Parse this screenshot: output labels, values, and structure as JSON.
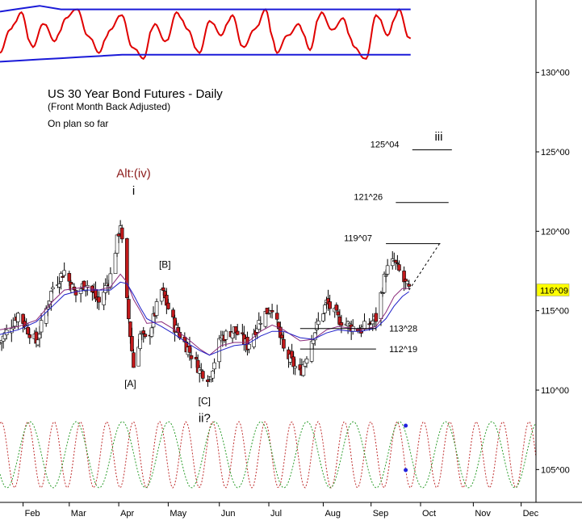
{
  "chart_data": {
    "type": "candlestick",
    "title": "US 30 Year Bond Futures - Daily",
    "subtitle": "(Front Month Back Adjusted)",
    "note": "On plan so far",
    "y_axis": {
      "scale": "linear",
      "range": [
        103,
        136
      ],
      "tick_labels": [
        "105^00",
        "110^00",
        "115^00",
        "120^00",
        "125^00",
        "130^00"
      ],
      "tick_values": [
        105,
        110,
        115,
        120,
        125,
        130
      ],
      "current_price_label": "116^09",
      "current_price": 116.28
    },
    "x_axis": {
      "type": "date",
      "range": [
        "2015-01-19",
        "2015-12-10"
      ],
      "tick_labels": [
        "Feb",
        "Mar",
        "Apr",
        "May",
        "Jun",
        "Jul",
        "Aug",
        "Sep",
        "Oct",
        "Nov",
        "Dec"
      ],
      "tick_dates": [
        "2015-02-02",
        "2015-03-02",
        "2015-04-01",
        "2015-05-01",
        "2015-06-01",
        "2015-07-01",
        "2015-08-03",
        "2015-09-01",
        "2015-10-01",
        "2015-11-02",
        "2015-12-01"
      ]
    },
    "price_path": {
      "dates": [
        "2015-01-19",
        "2015-01-30",
        "2015-02-10",
        "2015-02-20",
        "2015-02-27",
        "2015-03-06",
        "2015-03-12",
        "2015-03-20",
        "2015-03-27",
        "2015-04-02",
        "2015-04-06",
        "2015-04-10",
        "2015-04-14",
        "2015-04-18",
        "2015-04-27",
        "2015-05-05",
        "2015-05-12",
        "2015-05-20",
        "2015-05-26",
        "2015-06-02",
        "2015-06-10",
        "2015-06-18",
        "2015-06-26",
        "2015-07-03",
        "2015-07-10",
        "2015-07-20",
        "2015-07-28",
        "2015-08-05",
        "2015-08-12",
        "2015-08-20",
        "2015-08-26",
        "2015-09-04",
        "2015-09-10",
        "2015-09-15",
        "2015-09-20",
        "2015-09-24"
      ],
      "closes": [
        113.0,
        114.8,
        113.0,
        116.5,
        117.5,
        116.0,
        116.8,
        115.5,
        117.2,
        120.5,
        115.5,
        111.5,
        113.5,
        113.0,
        116.3,
        114.0,
        112.8,
        111.3,
        110.8,
        113.3,
        113.8,
        112.8,
        114.5,
        115.3,
        112.5,
        111.0,
        113.5,
        115.5,
        114.5,
        114.0,
        113.8,
        114.5,
        117.5,
        118.1,
        117.0,
        116.3
      ]
    },
    "moving_averages": {
      "blue": [
        113.5,
        113.8,
        114.3,
        115.3,
        116.0,
        116.2,
        116.3,
        116.3,
        116.3,
        116.8,
        116.7,
        116.0,
        115.2,
        114.5,
        114.0,
        113.5,
        113.0,
        112.5,
        112.2,
        112.5,
        112.8,
        112.9,
        113.4,
        113.7,
        113.7,
        113.3,
        113.2,
        113.6,
        113.8,
        113.7,
        113.7,
        113.9,
        114.5,
        115.3,
        115.9,
        116.2
      ],
      "purple": [
        113.8,
        114.0,
        114.4,
        115.6,
        116.3,
        116.4,
        116.5,
        116.3,
        116.5,
        117.3,
        116.8,
        115.7,
        115.0,
        114.2,
        114.3,
        113.8,
        113.3,
        112.6,
        112.2,
        112.8,
        113.0,
        113.0,
        113.7,
        114.1,
        113.8,
        113.1,
        113.2,
        113.8,
        114.0,
        113.9,
        113.8,
        114.0,
        114.9,
        115.9,
        116.4,
        116.4
      ]
    },
    "horizontal_levels": [
      {
        "label": "125^04",
        "value": 125.13,
        "start": "2015-09-26",
        "end": "2015-10-20"
      },
      {
        "label": "121^26",
        "value": 121.81,
        "start": "2015-09-16",
        "end": "2015-10-18"
      },
      {
        "label": "119^07",
        "value": 119.22,
        "start": "2015-09-10",
        "end": "2015-10-13"
      },
      {
        "label": "113^28",
        "value": 113.88,
        "start": "2015-07-20",
        "end": "2015-09-04"
      },
      {
        "label": "112^19",
        "value": 112.59,
        "start": "2015-07-20",
        "end": "2015-09-04"
      }
    ],
    "projection": {
      "from_date": "2015-09-24",
      "from_value": 116.3,
      "to_date": "2015-10-13",
      "to_value": 119.3
    },
    "wave_labels": [
      {
        "text": "Alt:(iv)",
        "date": "2015-04-10",
        "value": 123.4,
        "color": "#8b1a1a"
      },
      {
        "text": "i",
        "date": "2015-04-10",
        "value": 122.3,
        "color": "#000000"
      },
      {
        "text": "[B]",
        "date": "2015-04-29",
        "value": 117.7,
        "color": "#000000"
      },
      {
        "text": "[A]",
        "date": "2015-04-08",
        "value": 110.2,
        "color": "#000000"
      },
      {
        "text": "[C]",
        "date": "2015-05-23",
        "value": 109.1,
        "color": "#000000"
      },
      {
        "text": "ii?",
        "date": "2015-05-23",
        "value": 108.0,
        "color": "#000000"
      },
      {
        "text": "iii",
        "date": "2015-10-12",
        "value": 125.7,
        "color": "#000000"
      }
    ],
    "oscillator": {
      "type": "line",
      "values": [
        0.2,
        0.6,
        0.9,
        0.3,
        0.7,
        0.4,
        0.8,
        0.95,
        0.5,
        0.2,
        0.6,
        0.85,
        0.3,
        0.1,
        0.7,
        0.4,
        0.9,
        0.6,
        0.2,
        0.75,
        0.5,
        0.85,
        0.3,
        0.6,
        0.95,
        0.2,
        0.5,
        0.7,
        0.25,
        0.9,
        0.6,
        0.8,
        0.3,
        0.1,
        0.85,
        0.5,
        0.95,
        0.45
      ],
      "bands": [
        0.05,
        0.95
      ]
    },
    "cycles": {
      "type": "line",
      "series": [
        {
          "color": "#c03030",
          "period_days": 16
        },
        {
          "color": "#2e9e2e",
          "period_days": 28
        }
      ],
      "markers": [
        {
          "date": "2015-09-22",
          "level": "top"
        },
        {
          "date": "2015-09-22",
          "level": "bottom"
        }
      ]
    },
    "colors": {
      "up_candle": "#ffffff",
      "down_candle": "#c0191b",
      "ma_blue": "#1f1fc8",
      "ma_purple": "#8a2a7a",
      "osc": "#e00000",
      "band": "#1a1ad8",
      "price_tag": "#ffff00"
    }
  }
}
